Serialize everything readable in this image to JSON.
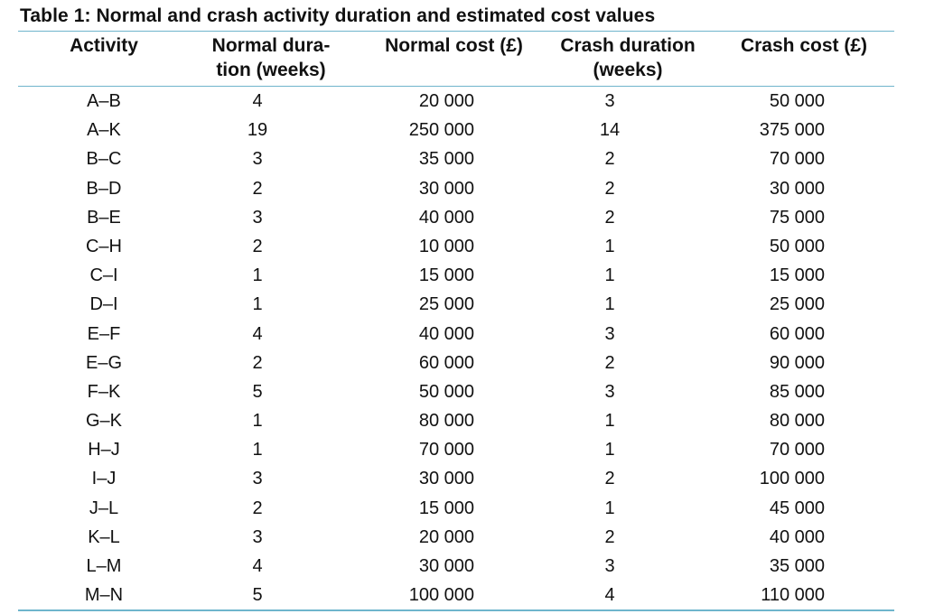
{
  "caption": "Table 1: Normal and crash activity duration and estimated cost values",
  "headers": {
    "activity": "Activity",
    "normal_duration_line1": "Normal dura-",
    "normal_duration_line2": "tion (weeks)",
    "normal_cost": "Normal cost (£)",
    "crash_duration_line1": "Crash duration",
    "crash_duration_line2": "(weeks)",
    "crash_cost": "Crash cost (£)"
  },
  "rows": [
    {
      "activity": "A–B",
      "normal_duration": "4",
      "normal_cost": "20 000",
      "crash_duration": "3",
      "crash_cost": "50 000"
    },
    {
      "activity": "A–K",
      "normal_duration": "19",
      "normal_cost": "250 000",
      "crash_duration": "14",
      "crash_cost": "375 000"
    },
    {
      "activity": "B–C",
      "normal_duration": "3",
      "normal_cost": "35 000",
      "crash_duration": "2",
      "crash_cost": "70 000"
    },
    {
      "activity": "B–D",
      "normal_duration": "2",
      "normal_cost": "30 000",
      "crash_duration": "2",
      "crash_cost": "30 000"
    },
    {
      "activity": "B–E",
      "normal_duration": "3",
      "normal_cost": "40 000",
      "crash_duration": "2",
      "crash_cost": "75 000"
    },
    {
      "activity": "C–H",
      "normal_duration": "2",
      "normal_cost": "10 000",
      "crash_duration": "1",
      "crash_cost": "50 000"
    },
    {
      "activity": "C–I",
      "normal_duration": "1",
      "normal_cost": "15 000",
      "crash_duration": "1",
      "crash_cost": "15 000"
    },
    {
      "activity": "D–I",
      "normal_duration": "1",
      "normal_cost": "25 000",
      "crash_duration": "1",
      "crash_cost": "25 000"
    },
    {
      "activity": "E–F",
      "normal_duration": "4",
      "normal_cost": "40 000",
      "crash_duration": "3",
      "crash_cost": "60 000"
    },
    {
      "activity": "E–G",
      "normal_duration": "2",
      "normal_cost": "60 000",
      "crash_duration": "2",
      "crash_cost": "90 000"
    },
    {
      "activity": "F–K",
      "normal_duration": "5",
      "normal_cost": "50 000",
      "crash_duration": "3",
      "crash_cost": "85 000"
    },
    {
      "activity": "G–K",
      "normal_duration": "1",
      "normal_cost": "80 000",
      "crash_duration": "1",
      "crash_cost": "80 000"
    },
    {
      "activity": "H–J",
      "normal_duration": "1",
      "normal_cost": "70 000",
      "crash_duration": "1",
      "crash_cost": "70 000"
    },
    {
      "activity": "I–J",
      "normal_duration": "3",
      "normal_cost": "30 000",
      "crash_duration": "2",
      "crash_cost": "100 000"
    },
    {
      "activity": "J–L",
      "normal_duration": "2",
      "normal_cost": "15 000",
      "crash_duration": "1",
      "crash_cost": "45 000"
    },
    {
      "activity": "K–L",
      "normal_duration": "3",
      "normal_cost": "20 000",
      "crash_duration": "2",
      "crash_cost": "40 000"
    },
    {
      "activity": "L–M",
      "normal_duration": "4",
      "normal_cost": "30 000",
      "crash_duration": "3",
      "crash_cost": "35 000"
    },
    {
      "activity": "M–N",
      "normal_duration": "5",
      "normal_cost": "100 000",
      "crash_duration": "4",
      "crash_cost": "110 000"
    }
  ],
  "colors": {
    "rule": "#6fb5cc",
    "text": "#111111"
  }
}
